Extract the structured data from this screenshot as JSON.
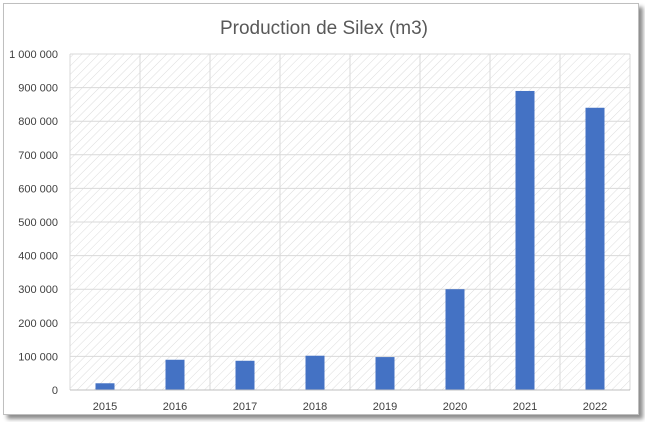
{
  "chart_data": {
    "type": "bar",
    "title": "Production de Silex (m3)",
    "categories": [
      "2015",
      "2016",
      "2017",
      "2018",
      "2019",
      "2020",
      "2021",
      "2022"
    ],
    "series": [
      {
        "values": [
          20000,
          90000,
          87000,
          102000,
          98000,
          300000,
          890000,
          840000
        ]
      }
    ],
    "ylim": [
      0,
      1000000
    ],
    "yticks": [
      0,
      100000,
      200000,
      300000,
      400000,
      500000,
      600000,
      700000,
      800000,
      900000,
      1000000
    ],
    "ytick_labels": [
      "0",
      "100 000",
      "200 000",
      "300 000",
      "400 000",
      "500 000",
      "600 000",
      "700 000",
      "800 000",
      "900 000",
      "1 000 000"
    ],
    "grid": true,
    "legend": "none",
    "colors": {
      "bar": "#4472c4",
      "grid": "#d9d9d9",
      "hatch": "#d9d9d9",
      "text": "#404040",
      "title": "#595959"
    }
  }
}
